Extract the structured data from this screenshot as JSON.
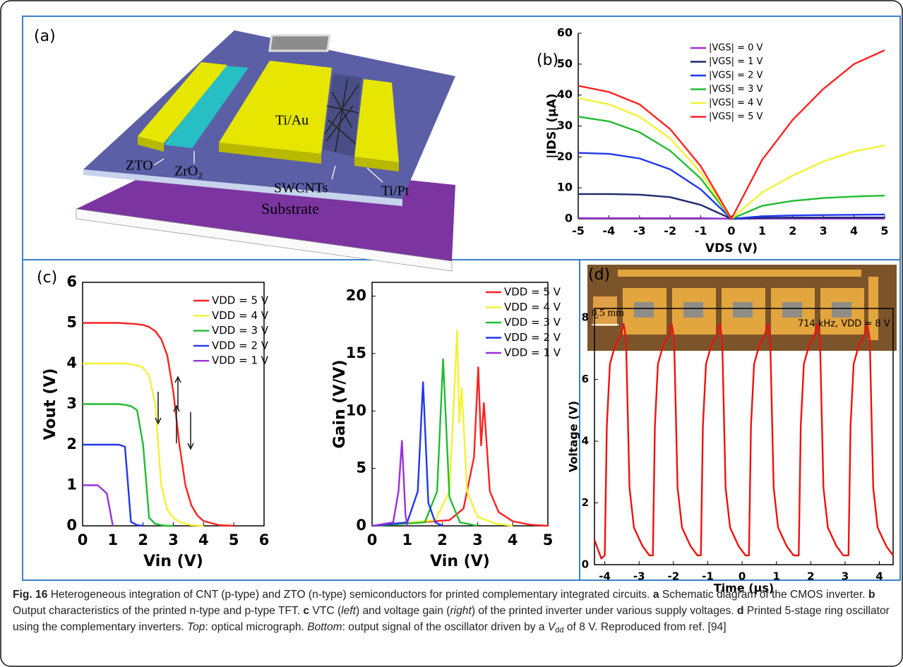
{
  "panel_labels": [
    "(a)",
    "(b)",
    "(c)",
    "(d)"
  ],
  "schematic": {
    "labels": [
      "ZTO",
      "ZrO₂",
      "Ti/Au",
      "SWCNTs",
      "Ti/Pt",
      "Substrate"
    ]
  },
  "micrograph": {
    "scale_bar": "0.5 mm"
  },
  "chart_data": [
    {
      "type": "line",
      "xlabel": "VDS (V)",
      "ylabel": "|IDS| (μA)",
      "x": [
        -5,
        -4,
        -3,
        -2,
        -1,
        0,
        1,
        2,
        3,
        4,
        5
      ],
      "xlim": [
        -5,
        5
      ],
      "ylim": [
        0,
        60
      ],
      "xticks": [
        -5,
        -4,
        -3,
        -2,
        -1,
        0,
        1,
        2,
        3,
        4,
        5
      ],
      "yticks": [
        0,
        10,
        20,
        30,
        40,
        50,
        60
      ],
      "legend": "upper center",
      "series": [
        {
          "name": "|VGS| = 0 V",
          "color": "#9b30d9",
          "values": [
            0.2,
            0.2,
            0.2,
            0.2,
            0.2,
            0,
            0.1,
            0.1,
            0.1,
            0.1,
            0.1
          ]
        },
        {
          "name": "|VGS| = 1 V",
          "color": "#1c2a6e",
          "values": [
            8,
            8,
            7.8,
            7,
            4.5,
            0,
            0.3,
            0.4,
            0.4,
            0.4,
            0.4
          ]
        },
        {
          "name": "|VGS| = 2 V",
          "color": "#2236ee",
          "values": [
            21.3,
            21,
            19.5,
            16,
            9.5,
            0,
            0.8,
            1.1,
            1.2,
            1.3,
            1.4
          ]
        },
        {
          "name": "|VGS| = 3 V",
          "color": "#22bb33",
          "values": [
            33,
            31.5,
            28,
            22,
            13,
            0,
            4.2,
            5.8,
            6.7,
            7.2,
            7.5
          ]
        },
        {
          "name": "|VGS| = 4 V",
          "color": "#f2f233",
          "values": [
            39,
            37,
            33,
            26,
            15,
            0,
            8.5,
            14,
            18.5,
            21.8,
            23.7
          ]
        },
        {
          "name": "|VGS| = 5 V",
          "color": "#ff2222",
          "values": [
            43,
            41,
            37,
            29,
            17,
            0,
            19,
            32,
            42,
            50,
            54.5
          ]
        }
      ]
    },
    {
      "type": "line",
      "xlabel": "Vin (V)",
      "ylabel": "Vout (V)",
      "x": [
        0,
        0.5,
        0.8,
        1,
        1.2,
        1.4,
        1.6,
        1.8,
        2,
        2.2,
        2.4,
        2.6,
        2.8,
        3,
        3.2,
        3.4,
        3.6,
        3.8,
        4,
        4.5,
        5
      ],
      "xlim": [
        0,
        6
      ],
      "ylim": [
        0,
        6
      ],
      "xticks": [
        0,
        1,
        2,
        3,
        4,
        5,
        6
      ],
      "yticks": [
        0,
        1,
        2,
        3,
        4,
        5,
        6
      ],
      "legend": "upper right",
      "series": [
        {
          "name": "VDD = 5 V",
          "color": "#ff2222",
          "values": [
            5,
            5,
            5,
            5,
            5,
            4.99,
            4.98,
            4.97,
            4.95,
            4.9,
            4.8,
            4.6,
            4.2,
            3.3,
            2,
            1,
            0.5,
            0.25,
            0.12,
            0.02,
            0
          ]
        },
        {
          "name": "VDD = 4 V",
          "color": "#f2f233",
          "values": [
            4,
            4,
            4,
            4,
            4,
            4,
            3.98,
            3.95,
            3.9,
            3.7,
            3,
            1,
            0.4,
            0.2,
            0.1,
            0.05,
            0.02,
            0.01,
            0,
            null,
            null
          ]
        },
        {
          "name": "VDD = 3 V",
          "color": "#22bb33",
          "values": [
            3,
            3,
            3,
            3,
            3,
            2.98,
            2.95,
            2.85,
            2,
            0.2,
            0.05,
            0.02,
            0,
            0,
            null,
            null,
            null,
            null,
            null,
            null,
            null
          ]
        },
        {
          "name": "VDD = 2 V",
          "color": "#2236ee",
          "values": [
            2,
            2,
            2,
            2,
            2,
            1.95,
            0.1,
            0.02,
            0,
            null,
            null,
            null,
            null,
            null,
            null,
            null,
            null,
            null,
            null,
            null,
            null
          ]
        },
        {
          "name": "VDD = 1 V",
          "color": "#9b30d9",
          "values": [
            1,
            1,
            0.8,
            0,
            null,
            null,
            null,
            null,
            null,
            null,
            null,
            null,
            null,
            null,
            null,
            null,
            null,
            null,
            null,
            null,
            null
          ]
        }
      ]
    },
    {
      "type": "line",
      "xlabel": "Vin (V)",
      "ylabel": "Gain (V/V)",
      "xlim": [
        0,
        5
      ],
      "ylim": [
        0,
        21.2
      ],
      "xticks": [
        0,
        1,
        2,
        3,
        4,
        5
      ],
      "yticks": [
        0,
        5,
        10,
        15,
        20
      ],
      "legend": "upper right",
      "series": [
        {
          "name": "VDD = 5 V",
          "color": "#ff2222",
          "x": [
            0,
            2.2,
            2.6,
            2.9,
            3.02,
            3.1,
            3.18,
            3.35,
            3.6,
            4,
            4.5,
            5
          ],
          "values": [
            0,
            0.5,
            1.5,
            6,
            13.8,
            7,
            10.7,
            3,
            1.2,
            0.4,
            0.1,
            0
          ]
        },
        {
          "name": "VDD = 4 V",
          "color": "#f2f233",
          "x": [
            0,
            1.8,
            2.2,
            2.42,
            2.48,
            2.55,
            2.7,
            3,
            3.5,
            4
          ],
          "values": [
            0,
            0.5,
            3,
            17,
            9,
            12,
            3,
            0.8,
            0.2,
            0
          ]
        },
        {
          "name": "VDD = 3 V",
          "color": "#22bb33",
          "x": [
            0,
            1.5,
            1.85,
            2.02,
            2.2,
            2.5,
            3
          ],
          "values": [
            0,
            0.3,
            3,
            14.5,
            2.5,
            0.3,
            0
          ]
        },
        {
          "name": "VDD = 2 V",
          "color": "#2236ee",
          "x": [
            0,
            1,
            1.3,
            1.45,
            1.6,
            1.8,
            2
          ],
          "values": [
            0,
            0.3,
            3,
            12.5,
            2,
            0.3,
            0
          ]
        },
        {
          "name": "VDD = 1 V",
          "color": "#9b30d9",
          "x": [
            0,
            0.6,
            0.75,
            0.85,
            0.95,
            1
          ],
          "values": [
            0,
            0.3,
            3,
            7.4,
            1,
            0
          ]
        }
      ]
    },
    {
      "type": "line",
      "xlabel": "Time (μs)",
      "ylabel": "Voltage (V)",
      "annotation": "714 kHz, VDD = 8 V",
      "color": "#ee1111",
      "xlim": [
        -4.3,
        4.4
      ],
      "ylim": [
        0,
        8.3
      ],
      "xticks": [
        -4,
        -3,
        -2,
        -1,
        0,
        1,
        2,
        3,
        4
      ],
      "yticks": [
        0,
        2,
        4,
        6,
        8
      ],
      "x": [
        -4.3,
        -4.1,
        -4.0,
        -3.94,
        -3.85,
        -3.7,
        -3.55,
        -3.45,
        -3.38,
        -3.28,
        -3.15,
        -2.9,
        -2.7,
        -2.6,
        -2.54,
        -2.45,
        -2.3,
        -2.15,
        -2.05,
        -1.98,
        -1.88,
        -1.75,
        -1.5,
        -1.3,
        -1.2,
        -1.14,
        -1.05,
        -0.9,
        -0.75,
        -0.65,
        -0.58,
        -0.48,
        -0.35,
        -0.1,
        0.1,
        0.2,
        0.26,
        0.35,
        0.5,
        0.65,
        0.75,
        0.82,
        0.92,
        1.05,
        1.3,
        1.5,
        1.65,
        1.71,
        1.8,
        1.95,
        2.1,
        2.2,
        2.27,
        2.37,
        2.5,
        2.75,
        2.95,
        3.1,
        3.16,
        3.25,
        3.4,
        3.55,
        3.65,
        3.72,
        3.82,
        3.95,
        4.2,
        4.4
      ],
      "values": [
        0.8,
        0.2,
        0.3,
        4.5,
        6.5,
        7.1,
        7.4,
        7.8,
        7.3,
        2.5,
        1.2,
        0.6,
        0.3,
        0.3,
        4.5,
        6.5,
        7.1,
        7.4,
        7.8,
        7.3,
        2.5,
        1.2,
        0.6,
        0.3,
        0.3,
        4.5,
        6.5,
        7.1,
        7.4,
        7.8,
        7.3,
        2.5,
        1.2,
        0.6,
        0.3,
        0.3,
        4.5,
        6.5,
        7.1,
        7.4,
        7.8,
        7.3,
        2.5,
        1.2,
        0.6,
        0.3,
        0.3,
        4.5,
        6.5,
        7.1,
        7.4,
        7.8,
        7.3,
        2.5,
        1.2,
        0.6,
        0.3,
        0.3,
        4.5,
        6.5,
        7.1,
        7.4,
        7.8,
        7.3,
        2.5,
        1.2,
        0.6,
        0.3
      ]
    }
  ],
  "caption": [
    {
      "text": "Fig. 16",
      "style": "bold"
    },
    {
      "text": " Heterogeneous integration of CNT (p-type) and ZTO (n-type) semiconductors for printed complementary integrated circuits. "
    },
    {
      "text": "a",
      "style": "bold"
    },
    {
      "text": " Schematic diagram of the CMOS inverter. "
    },
    {
      "text": "b",
      "style": "bold"
    },
    {
      "text": " Output characteristics of the printed n-type and p-type TFT. "
    },
    {
      "text": "c",
      "style": "bold"
    },
    {
      "text": " VTC ("
    },
    {
      "text": "left",
      "style": "italic"
    },
    {
      "text": ") and voltage gain ("
    },
    {
      "text": "right",
      "style": "italic"
    },
    {
      "text": ") of the printed inverter under various supply voltages. "
    },
    {
      "text": "d",
      "style": "bold"
    },
    {
      "text": " Printed 5-stage ring oscillator using the complementary inverters. "
    },
    {
      "text": "Top",
      "style": "italic"
    },
    {
      "text": ": optical micrograph. "
    },
    {
      "text": "Bottom",
      "style": "italic"
    },
    {
      "text": ": output signal of the oscillator driven by a "
    },
    {
      "text": "V",
      "style": "italic"
    },
    {
      "text": "dd",
      "style": "sub"
    },
    {
      "text": " of 8 V. Reproduced from ref. [94]"
    }
  ]
}
